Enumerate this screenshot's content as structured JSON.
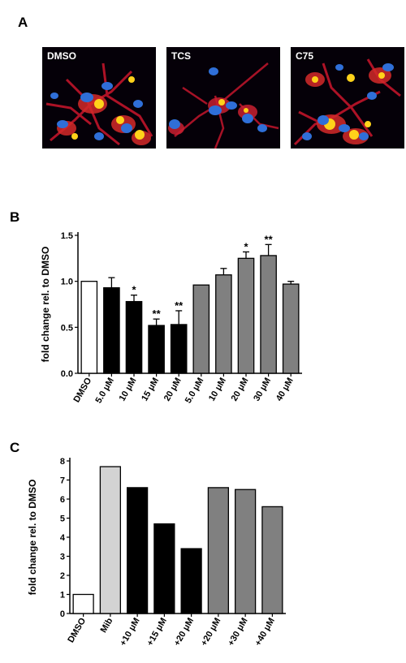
{
  "panels": {
    "a": {
      "letter": "A",
      "images": [
        {
          "label": "DMSO"
        },
        {
          "label": "TCS"
        },
        {
          "label": "C75"
        }
      ]
    },
    "b": {
      "letter": "B"
    },
    "c": {
      "letter": "C"
    }
  },
  "chart_data": [
    {
      "type": "bar",
      "panel": "B",
      "ylabel": "fold change rel. to DMSO",
      "ylim": [
        0,
        1.5
      ],
      "yticks": [
        "0.0",
        "0.5",
        "1.0",
        "1.5"
      ],
      "categories": [
        "DMSO",
        "5.0 μM",
        "10 μM",
        "15 μM",
        "20 μM",
        "5.0 μM",
        "10 μM",
        "20 μM",
        "30 μM",
        "40 μM"
      ],
      "values": [
        1.0,
        0.93,
        0.78,
        0.52,
        0.53,
        0.96,
        1.07,
        1.25,
        1.28,
        0.97
      ],
      "errors": [
        0,
        0.11,
        0.07,
        0.07,
        0.15,
        0,
        0.07,
        0.07,
        0.12,
        0.03
      ],
      "significance": [
        "",
        "",
        "*",
        "**",
        "**",
        "",
        "",
        "*",
        "**",
        ""
      ],
      "colors": [
        "#ffffff",
        "#000000",
        "#000000",
        "#000000",
        "#000000",
        "#808080",
        "#808080",
        "#808080",
        "#808080",
        "#808080"
      ]
    },
    {
      "type": "bar",
      "panel": "C",
      "ylabel": "fold change rel. to DMSO",
      "ylim": [
        0,
        8
      ],
      "yticks": [
        "0",
        "1",
        "2",
        "3",
        "4",
        "5",
        "6",
        "7",
        "8"
      ],
      "categories": [
        "DMSO",
        "Mib",
        "+10 μM",
        "+15 μM",
        "+20 μM",
        "+20 μM",
        "+30 μM",
        "+40 μM"
      ],
      "values": [
        1.0,
        7.7,
        6.6,
        4.7,
        3.4,
        6.6,
        6.5,
        5.6
      ],
      "colors": [
        "#ffffff",
        "#d3d3d3",
        "#000000",
        "#000000",
        "#000000",
        "#808080",
        "#808080",
        "#808080"
      ]
    }
  ]
}
